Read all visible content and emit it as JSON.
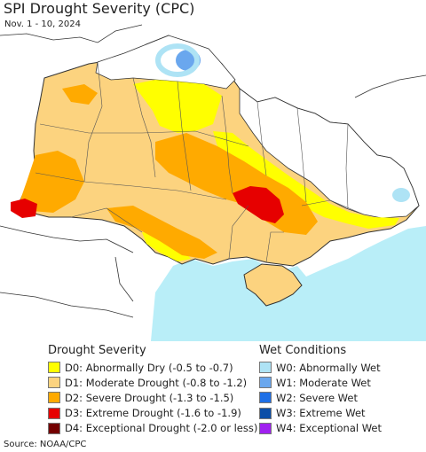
{
  "title": "SPI Drought Severity (CPC)",
  "date_range": "Nov. 1 - 10, 2024",
  "source": "Source: NOAA/CPC",
  "legend": {
    "drought": {
      "heading": "Drought Severity",
      "items": [
        {
          "label": "D0: Abnormally Dry (-0.5 to -0.7)",
          "color": "#ffff00"
        },
        {
          "label": "D1: Moderate Drought (-0.8 to -1.2)",
          "color": "#fcd37f"
        },
        {
          "label": "D2: Severe Drought (-1.3 to -1.5)",
          "color": "#ffaa00"
        },
        {
          "label": "D3: Extreme Drought (-1.6 to -1.9)",
          "color": "#e60000"
        },
        {
          "label": "D4: Exceptional Drought (-2.0 or less)",
          "color": "#730000"
        }
      ]
    },
    "wet": {
      "heading": "Wet Conditions",
      "items": [
        {
          "label": "W0: Abnormally Wet",
          "color": "#aee3f5"
        },
        {
          "label": "W1: Moderate Wet",
          "color": "#6aa7ee"
        },
        {
          "label": "W2: Severe Wet",
          "color": "#1e6fe6"
        },
        {
          "label": "W3: Extreme Wet",
          "color": "#0b4ea8"
        },
        {
          "label": "W4: Exceptional Wet",
          "color": "#a020f0"
        }
      ]
    }
  },
  "map": {
    "sea_color": "#b9eef8",
    "land_color": "#ffffff",
    "border_color": "#333333"
  }
}
